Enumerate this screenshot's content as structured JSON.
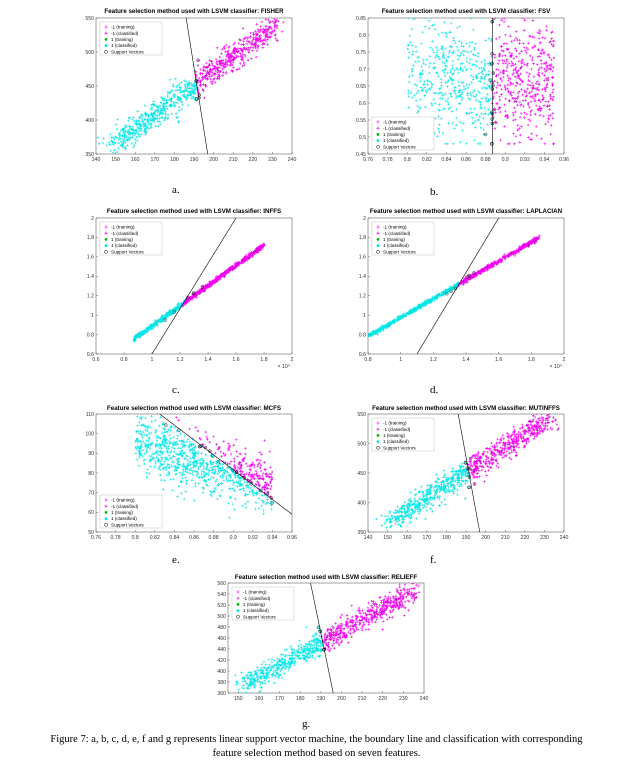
{
  "chart_data": [
    {
      "id": "a",
      "type": "scatter",
      "title": "Feature selection method used with LSVM classifier: FISHER",
      "label": "a.",
      "xlim": [
        140,
        240
      ],
      "ylim": [
        350,
        550
      ],
      "xticks": [
        140,
        150,
        160,
        170,
        180,
        190,
        200,
        210,
        220,
        230,
        240
      ],
      "yticks": [
        350,
        400,
        450,
        500,
        550
      ],
      "xtick_labels": [
        "140",
        "150",
        "160",
        "170",
        "180",
        "190",
        "200",
        "210",
        "220",
        "230",
        "240"
      ],
      "ytick_labels": [
        "350",
        "400",
        "450",
        "500",
        "550"
      ],
      "exponent": "",
      "legend_position": "top-left",
      "boundary": [
        [
          186,
          550
        ],
        [
          197,
          350
        ]
      ],
      "cloud": {
        "x_start": 150,
        "x_end": 232,
        "y_start": 365,
        "y_end": 540,
        "spread": 13
      },
      "series": [
        {
          "name": "-1 (training)",
          "color": "#ff00ff",
          "marker": "plus"
        },
        {
          "name": "-1 (classified)",
          "color": "#cc00cc",
          "marker": "plus"
        },
        {
          "name": "1 (training)",
          "color": "#00bb00",
          "marker": "star"
        },
        {
          "name": "1 (classified)",
          "color": "#00e5e5",
          "marker": "star"
        },
        {
          "name": "Support Vectors",
          "color": "#000000",
          "marker": "circle"
        }
      ]
    },
    {
      "id": "b",
      "type": "scatter",
      "title": "Feature selection method used with LSVM classifier: FSV",
      "label": "b.",
      "xlim": [
        0.76,
        0.96
      ],
      "ylim": [
        0.45,
        0.85
      ],
      "xticks": [
        0.76,
        0.78,
        0.8,
        0.82,
        0.84,
        0.86,
        0.88,
        0.9,
        0.92,
        0.94,
        0.96
      ],
      "yticks": [
        0.45,
        0.5,
        0.55,
        0.6,
        0.65,
        0.7,
        0.75,
        0.8,
        0.85
      ],
      "xtick_labels": [
        "0.76",
        "0.78",
        "0.8",
        "0.82",
        "0.84",
        "0.86",
        "0.88",
        "0.9",
        "0.92",
        "0.94",
        "0.96"
      ],
      "ytick_labels": [
        "0.45",
        "0.5",
        "0.55",
        "0.6",
        "0.65",
        "0.7",
        "0.75",
        "0.8",
        "0.85"
      ],
      "exponent": "",
      "legend_position": "bottom-left",
      "boundary": [
        [
          0.887,
          0.85
        ],
        [
          0.887,
          0.45
        ]
      ],
      "cloud": {
        "x_start": 0.8,
        "x_end": 0.95,
        "y_start": 0.5,
        "y_end": 0.84,
        "spread": 0.0
      },
      "series": [
        {
          "name": "-1 (training)",
          "color": "#ff00ff",
          "marker": "plus"
        },
        {
          "name": "-1 (classified)",
          "color": "#cc00cc",
          "marker": "plus"
        },
        {
          "name": "1 (training)",
          "color": "#00bb00",
          "marker": "star"
        },
        {
          "name": "1 (classified)",
          "color": "#00e5e5",
          "marker": "star"
        },
        {
          "name": "Support Vectors",
          "color": "#000000",
          "marker": "circle"
        }
      ]
    },
    {
      "id": "c",
      "type": "scatter",
      "title": "Feature selection method used with LSVM classifier: INFFS",
      "label": "c.",
      "xlim": [
        6000,
        20000
      ],
      "ylim": [
        0.6,
        2.0
      ],
      "xticks": [
        6000,
        8000,
        10000,
        12000,
        14000,
        16000,
        18000,
        20000
      ],
      "yticks": [
        0.6,
        0.8,
        1.0,
        1.2,
        1.4,
        1.6,
        1.8,
        2.0
      ],
      "xtick_labels": [
        "0.6",
        "0.8",
        "1",
        "1.2",
        "1.4",
        "1.6",
        "1.8",
        "2"
      ],
      "ytick_labels": [
        "0.6",
        "0.8",
        "1",
        "1.2",
        "1.4",
        "1.6",
        "1.8",
        "2"
      ],
      "exponent": "× 10⁴",
      "legend_position": "top-left",
      "boundary": [
        [
          10000,
          0.6
        ],
        [
          16000,
          2.0
        ]
      ],
      "cloud": {
        "x_start": 8700,
        "x_end": 18000,
        "y_start": 0.75,
        "y_end": 1.72,
        "spread": 0.03
      },
      "series": [
        {
          "name": "-1 (training)",
          "color": "#ff00ff",
          "marker": "plus"
        },
        {
          "name": "-1 (classified)",
          "color": "#cc00cc",
          "marker": "plus"
        },
        {
          "name": "1 (training)",
          "color": "#00bb00",
          "marker": "star"
        },
        {
          "name": "1 (classified)",
          "color": "#00e5e5",
          "marker": "star"
        },
        {
          "name": "Support Vectors",
          "color": "#000000",
          "marker": "circle"
        }
      ]
    },
    {
      "id": "d",
      "type": "scatter",
      "title": "Feature selection method used with LSVM classifier: LAPLACIAN",
      "label": "d.",
      "xlim": [
        8000,
        20000
      ],
      "ylim": [
        0.6,
        2.0
      ],
      "xticks": [
        8000,
        10000,
        12000,
        14000,
        16000,
        18000,
        20000
      ],
      "yticks": [
        0.6,
        0.8,
        1.0,
        1.2,
        1.4,
        1.6,
        1.8,
        2.0
      ],
      "xtick_labels": [
        "0.8",
        "1",
        "1.2",
        "1.4",
        "1.6",
        "1.8",
        "2"
      ],
      "ytick_labels": [
        "0.6",
        "0.8",
        "1",
        "1.2",
        "1.4",
        "1.6",
        "1.8",
        "2"
      ],
      "exponent": "× 10⁴",
      "legend_position": "top-left",
      "boundary": [
        [
          11000,
          0.6
        ],
        [
          16000,
          2.0
        ]
      ],
      "cloud": {
        "x_start": 8000,
        "x_end": 18500,
        "y_start": 0.78,
        "y_end": 1.8,
        "spread": 0.03
      },
      "series": [
        {
          "name": "-1 (training)",
          "color": "#ff00ff",
          "marker": "plus"
        },
        {
          "name": "-1 (classified)",
          "color": "#cc00cc",
          "marker": "plus"
        },
        {
          "name": "1 (training)",
          "color": "#00bb00",
          "marker": "star"
        },
        {
          "name": "1 (classified)",
          "color": "#00e5e5",
          "marker": "star"
        },
        {
          "name": "Support Vectors",
          "color": "#000000",
          "marker": "circle"
        }
      ]
    },
    {
      "id": "e",
      "type": "scatter",
      "title": "Feature selection method used with LSVM classifier: MCFS",
      "label": "e.",
      "xlim": [
        0.76,
        0.96
      ],
      "ylim": [
        50,
        110
      ],
      "xticks": [
        0.76,
        0.78,
        0.8,
        0.82,
        0.84,
        0.86,
        0.88,
        0.9,
        0.92,
        0.94,
        0.96
      ],
      "yticks": [
        50,
        60,
        70,
        80,
        90,
        100,
        110
      ],
      "xtick_labels": [
        "0.76",
        "0.78",
        "0.8",
        "0.82",
        "0.84",
        "0.86",
        "0.88",
        "0.9",
        "0.92",
        "0.94",
        "0.96"
      ],
      "ytick_labels": [
        "50",
        "60",
        "70",
        "80",
        "90",
        "100",
        "110"
      ],
      "exponent": "",
      "legend_position": "bottom-left",
      "boundary": [
        [
          0.825,
          110
        ],
        [
          0.96,
          59
        ]
      ],
      "cloud": {
        "x_start": 0.8,
        "x_end": 0.94,
        "y_start": 68,
        "y_end": 100,
        "spread": 0
      },
      "series": [
        {
          "name": "-1 (training)",
          "color": "#ff00ff",
          "marker": "plus"
        },
        {
          "name": "-1 (classified)",
          "color": "#cc00cc",
          "marker": "plus"
        },
        {
          "name": "1 (training)",
          "color": "#00bb00",
          "marker": "star"
        },
        {
          "name": "1 (classified)",
          "color": "#00e5e5",
          "marker": "star"
        },
        {
          "name": "Support Vectors",
          "color": "#000000",
          "marker": "circle"
        }
      ]
    },
    {
      "id": "f",
      "type": "scatter",
      "title": "Feature selection method used with LSVM classifier: MUTINFFS",
      "label": "f.",
      "xlim": [
        140,
        240
      ],
      "ylim": [
        350,
        550
      ],
      "xticks": [
        140,
        150,
        160,
        170,
        180,
        190,
        200,
        210,
        220,
        230,
        240
      ],
      "yticks": [
        350,
        400,
        450,
        500,
        550
      ],
      "xtick_labels": [
        "140",
        "150",
        "160",
        "170",
        "180",
        "190",
        "200",
        "210",
        "220",
        "230",
        "240"
      ],
      "ytick_labels": [
        "350",
        "400",
        "450",
        "500",
        "550"
      ],
      "exponent": "",
      "legend_position": "top-left",
      "boundary": [
        [
          186,
          550
        ],
        [
          197,
          350
        ]
      ],
      "cloud": {
        "x_start": 150,
        "x_end": 232,
        "y_start": 365,
        "y_end": 540,
        "spread": 13
      },
      "series": [
        {
          "name": "-1 (training)",
          "color": "#ff00ff",
          "marker": "plus"
        },
        {
          "name": "-1 (classified)",
          "color": "#cc00cc",
          "marker": "plus"
        },
        {
          "name": "1 (training)",
          "color": "#00bb00",
          "marker": "star"
        },
        {
          "name": "1 (classified)",
          "color": "#00e5e5",
          "marker": "star"
        },
        {
          "name": "Support Vectors",
          "color": "#000000",
          "marker": "circle"
        }
      ]
    },
    {
      "id": "g",
      "type": "scatter",
      "title": "Feature selection method used with LSVM classifier: RELIEFF",
      "label": "g.",
      "xlim": [
        145,
        240
      ],
      "ylim": [
        360,
        560
      ],
      "xticks": [
        150,
        160,
        170,
        180,
        190,
        200,
        210,
        220,
        230,
        240
      ],
      "yticks": [
        360,
        380,
        400,
        420,
        440,
        460,
        480,
        500,
        520,
        540,
        560
      ],
      "xtick_labels": [
        "150",
        "160",
        "170",
        "180",
        "190",
        "200",
        "210",
        "220",
        "230",
        "240"
      ],
      "ytick_labels": [
        "360",
        "380",
        "400",
        "420",
        "440",
        "460",
        "480",
        "500",
        "520",
        "540",
        "560"
      ],
      "exponent": "",
      "legend_position": "top-left",
      "boundary": [
        [
          185,
          560
        ],
        [
          196,
          360
        ]
      ],
      "cloud": {
        "x_start": 152,
        "x_end": 235,
        "y_start": 372,
        "y_end": 545,
        "spread": 11
      },
      "series": [
        {
          "name": "-1 (training)",
          "color": "#ff00ff",
          "marker": "plus"
        },
        {
          "name": "-1 (classified)",
          "color": "#cc00cc",
          "marker": "plus"
        },
        {
          "name": "1 (training)",
          "color": "#00bb00",
          "marker": "star"
        },
        {
          "name": "1 (classified)",
          "color": "#00e5e5",
          "marker": "star"
        },
        {
          "name": "Support Vectors",
          "color": "#000000",
          "marker": "circle"
        }
      ]
    }
  ],
  "caption": {
    "line1": "Figure 7: a, b, c, d, e, f and g represents linear support vector machine, the boundary line and classification with corresponding",
    "line2": "feature selection method based on seven features."
  }
}
